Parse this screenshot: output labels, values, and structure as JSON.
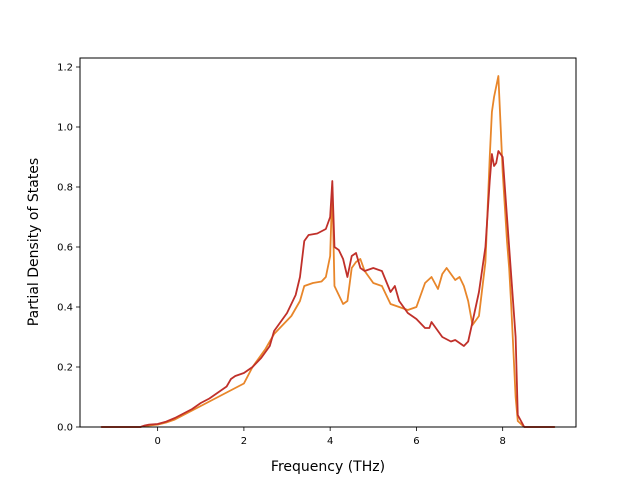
{
  "chart_data": {
    "type": "line",
    "title": "",
    "xlabel": "Frequency (THz)",
    "ylabel": "Partial Density of States",
    "xlim": [
      -1.8,
      9.7
    ],
    "ylim": [
      0.0,
      1.23
    ],
    "xticks": [
      0,
      2,
      4,
      6,
      8
    ],
    "yticks": [
      0.0,
      0.2,
      0.4,
      0.6,
      0.8,
      1.0,
      1.2
    ],
    "xtick_labels": [
      "0",
      "2",
      "4",
      "6",
      "8"
    ],
    "ytick_labels": [
      "0.0",
      "0.2",
      "0.4",
      "0.6",
      "0.8",
      "1.0",
      "1.2"
    ],
    "grid": false,
    "legend": "none",
    "series": [
      {
        "color": "#e8862a",
        "x": [
          -1.3,
          -0.4,
          -0.3,
          -0.2,
          0.0,
          0.2,
          0.4,
          0.6,
          0.8,
          1.0,
          1.2,
          1.4,
          1.6,
          1.8,
          2.0,
          2.2,
          2.3,
          2.5,
          2.7,
          2.9,
          3.1,
          3.3,
          3.4,
          3.6,
          3.8,
          3.9,
          4.0,
          4.05,
          4.1,
          4.2,
          4.3,
          4.4,
          4.5,
          4.6,
          4.7,
          4.8,
          5.0,
          5.2,
          5.4,
          5.6,
          5.8,
          6.0,
          6.2,
          6.35,
          6.5,
          6.6,
          6.7,
          6.9,
          7.0,
          7.1,
          7.2,
          7.3,
          7.45,
          7.6,
          7.7,
          7.75,
          7.8,
          7.9,
          8.0,
          8.1,
          8.15,
          8.2,
          8.3,
          8.35,
          8.5,
          9.2
        ],
        "y": [
          0.0,
          0.0,
          0.003,
          0.005,
          0.008,
          0.015,
          0.025,
          0.04,
          0.055,
          0.07,
          0.085,
          0.1,
          0.115,
          0.13,
          0.145,
          0.2,
          0.22,
          0.26,
          0.31,
          0.34,
          0.37,
          0.42,
          0.47,
          0.48,
          0.485,
          0.5,
          0.57,
          0.8,
          0.47,
          0.44,
          0.41,
          0.42,
          0.53,
          0.55,
          0.56,
          0.52,
          0.48,
          0.47,
          0.41,
          0.4,
          0.39,
          0.4,
          0.48,
          0.5,
          0.46,
          0.51,
          0.53,
          0.49,
          0.5,
          0.47,
          0.42,
          0.34,
          0.37,
          0.55,
          0.9,
          1.05,
          1.1,
          1.17,
          0.85,
          0.62,
          0.53,
          0.4,
          0.1,
          0.02,
          0.0,
          0.0
        ]
      },
      {
        "color": "#c0302a",
        "x": [
          -1.3,
          -0.4,
          -0.3,
          -0.2,
          0.0,
          0.2,
          0.4,
          0.6,
          0.8,
          1.0,
          1.2,
          1.4,
          1.6,
          1.7,
          1.8,
          2.0,
          2.2,
          2.4,
          2.6,
          2.7,
          2.8,
          3.0,
          3.2,
          3.3,
          3.4,
          3.5,
          3.7,
          3.9,
          4.0,
          4.05,
          4.1,
          4.2,
          4.3,
          4.4,
          4.5,
          4.6,
          4.7,
          4.8,
          5.0,
          5.2,
          5.4,
          5.5,
          5.6,
          5.8,
          6.0,
          6.2,
          6.3,
          6.35,
          6.5,
          6.6,
          6.8,
          6.9,
          7.0,
          7.1,
          7.2,
          7.3,
          7.45,
          7.6,
          7.7,
          7.75,
          7.8,
          7.85,
          7.9,
          8.0,
          8.1,
          8.2,
          8.3,
          8.35,
          8.5,
          9.2
        ],
        "y": [
          0.0,
          0.0,
          0.005,
          0.008,
          0.01,
          0.018,
          0.03,
          0.045,
          0.06,
          0.08,
          0.095,
          0.115,
          0.135,
          0.16,
          0.17,
          0.18,
          0.2,
          0.23,
          0.27,
          0.32,
          0.34,
          0.38,
          0.44,
          0.5,
          0.62,
          0.64,
          0.645,
          0.66,
          0.7,
          0.82,
          0.6,
          0.59,
          0.56,
          0.5,
          0.57,
          0.58,
          0.53,
          0.52,
          0.53,
          0.52,
          0.45,
          0.47,
          0.42,
          0.38,
          0.36,
          0.33,
          0.33,
          0.35,
          0.32,
          0.3,
          0.285,
          0.29,
          0.28,
          0.27,
          0.285,
          0.35,
          0.45,
          0.6,
          0.82,
          0.91,
          0.87,
          0.88,
          0.92,
          0.9,
          0.7,
          0.5,
          0.3,
          0.04,
          0.0,
          0.0
        ]
      }
    ]
  }
}
